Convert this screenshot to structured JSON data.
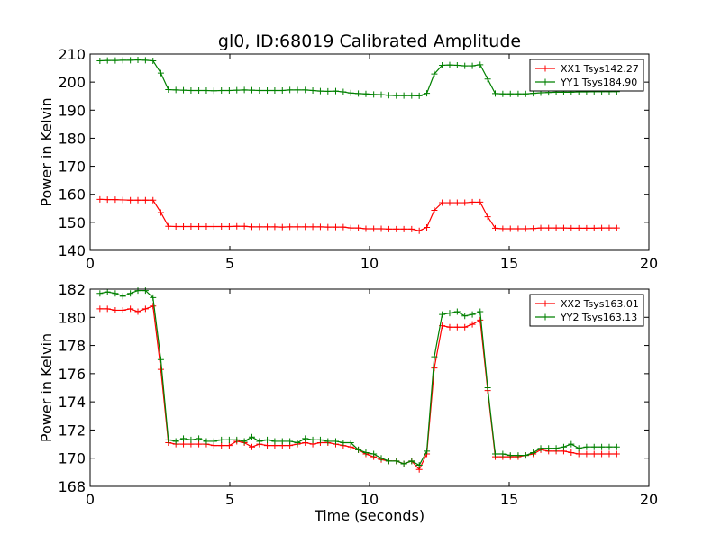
{
  "chart_data": [
    {
      "type": "line",
      "title": "gl0, ID:68019 Calibrated Amplitude",
      "xlabel": "",
      "ylabel": "Power in Kelvin",
      "xlim": [
        0,
        20
      ],
      "ylim": [
        140,
        210
      ],
      "xticks": [
        0,
        5,
        10,
        15,
        20
      ],
      "yticks": [
        140,
        150,
        160,
        170,
        180,
        190,
        200,
        210
      ],
      "legend_position": "top-right",
      "grid": false,
      "x": [
        0.35,
        0.62,
        0.9,
        1.17,
        1.44,
        1.71,
        1.98,
        2.25,
        2.53,
        2.8,
        3.07,
        3.34,
        3.61,
        3.89,
        4.16,
        4.43,
        4.7,
        4.98,
        5.25,
        5.52,
        5.79,
        6.06,
        6.34,
        6.61,
        6.88,
        7.15,
        7.42,
        7.7,
        7.97,
        8.24,
        8.51,
        8.79,
        9.06,
        9.33,
        9.6,
        9.87,
        10.15,
        10.42,
        10.69,
        10.96,
        11.23,
        11.51,
        11.78,
        12.05,
        12.32,
        12.6,
        12.87,
        13.14,
        13.41,
        13.68,
        13.96,
        14.23,
        14.5,
        14.77,
        15.04,
        15.32,
        15.59,
        15.86,
        16.13,
        16.41,
        16.68,
        16.95,
        17.22,
        17.49,
        17.77,
        18.04,
        18.31,
        18.58,
        18.85
      ],
      "series": [
        {
          "name": "XX1 Tsys142.27",
          "color": "#ff0000",
          "values": [
            158.2,
            158.1,
            158.1,
            158.0,
            157.9,
            157.9,
            157.9,
            157.9,
            153.5,
            148.6,
            148.5,
            148.5,
            148.5,
            148.5,
            148.5,
            148.5,
            148.5,
            148.5,
            148.6,
            148.6,
            148.4,
            148.4,
            148.4,
            148.4,
            148.3,
            148.4,
            148.4,
            148.4,
            148.4,
            148.4,
            148.3,
            148.3,
            148.3,
            148.0,
            148.0,
            147.7,
            147.7,
            147.7,
            147.6,
            147.6,
            147.6,
            147.6,
            147.0,
            148.2,
            154.3,
            157.0,
            157.0,
            157.0,
            157.0,
            157.2,
            157.2,
            152.0,
            147.9,
            147.7,
            147.7,
            147.7,
            147.7,
            147.8,
            148.0,
            148.0,
            148.0,
            148.0,
            147.9,
            147.9,
            147.9,
            147.9,
            148.0,
            148.0,
            148.0
          ]
        },
        {
          "name": "YY1 Tsys184.90",
          "color": "#008000",
          "values": [
            207.6,
            207.7,
            207.7,
            207.8,
            207.8,
            207.9,
            207.8,
            207.6,
            203.2,
            197.3,
            197.2,
            197.1,
            197.0,
            197.0,
            197.0,
            196.9,
            197.0,
            197.0,
            197.1,
            197.2,
            197.1,
            197.0,
            197.0,
            197.0,
            197.0,
            197.2,
            197.2,
            197.2,
            197.0,
            196.8,
            196.7,
            196.8,
            196.5,
            196.1,
            195.9,
            195.8,
            195.6,
            195.5,
            195.3,
            195.2,
            195.2,
            195.2,
            195.1,
            196.0,
            202.9,
            206.0,
            206.1,
            206.0,
            205.8,
            205.8,
            206.2,
            201.1,
            195.9,
            195.8,
            195.8,
            195.8,
            195.8,
            196.0,
            196.2,
            196.3,
            196.4,
            196.4,
            196.4,
            196.5,
            196.5,
            196.6,
            196.6,
            196.6,
            196.6
          ]
        }
      ]
    },
    {
      "type": "line",
      "title": "",
      "xlabel": "Time (seconds)",
      "ylabel": "Power in Kelvin",
      "xlim": [
        0,
        20
      ],
      "ylim": [
        168,
        182
      ],
      "xticks": [
        0,
        5,
        10,
        15,
        20
      ],
      "yticks": [
        168,
        170,
        172,
        174,
        176,
        178,
        180,
        182
      ],
      "legend_position": "top-right",
      "grid": false,
      "x": [
        0.35,
        0.62,
        0.9,
        1.17,
        1.44,
        1.71,
        1.98,
        2.25,
        2.53,
        2.8,
        3.07,
        3.34,
        3.61,
        3.89,
        4.16,
        4.43,
        4.7,
        4.98,
        5.25,
        5.52,
        5.79,
        6.06,
        6.34,
        6.61,
        6.88,
        7.15,
        7.42,
        7.7,
        7.97,
        8.24,
        8.51,
        8.79,
        9.06,
        9.33,
        9.6,
        9.87,
        10.15,
        10.42,
        10.69,
        10.96,
        11.23,
        11.51,
        11.78,
        12.05,
        12.32,
        12.6,
        12.87,
        13.14,
        13.41,
        13.68,
        13.96,
        14.23,
        14.5,
        14.77,
        15.04,
        15.32,
        15.59,
        15.86,
        16.13,
        16.41,
        16.68,
        16.95,
        17.22,
        17.49,
        17.77,
        18.04,
        18.31,
        18.58,
        18.85
      ],
      "series": [
        {
          "name": "XX2 Tsys163.01",
          "color": "#ff0000",
          "values": [
            180.6,
            180.6,
            180.5,
            180.5,
            180.6,
            180.4,
            180.6,
            180.8,
            176.3,
            171.1,
            171.0,
            171.0,
            171.0,
            171.0,
            171.0,
            170.9,
            170.9,
            170.9,
            171.2,
            171.1,
            170.8,
            171.0,
            170.9,
            170.9,
            170.9,
            170.9,
            171.0,
            171.1,
            171.0,
            171.1,
            171.1,
            171.0,
            170.9,
            170.8,
            170.6,
            170.3,
            170.1,
            169.9,
            169.8,
            169.8,
            169.6,
            169.8,
            169.2,
            170.3,
            176.4,
            179.4,
            179.3,
            179.3,
            179.3,
            179.5,
            179.8,
            174.8,
            170.1,
            170.1,
            170.1,
            170.1,
            170.2,
            170.3,
            170.6,
            170.5,
            170.5,
            170.5,
            170.4,
            170.3,
            170.3,
            170.3,
            170.3,
            170.3,
            170.3
          ]
        },
        {
          "name": "YY2 Tsys163.13",
          "color": "#008000",
          "values": [
            181.7,
            181.8,
            181.7,
            181.5,
            181.7,
            181.9,
            181.9,
            181.4,
            177.0,
            171.3,
            171.2,
            171.4,
            171.3,
            171.4,
            171.2,
            171.2,
            171.3,
            171.3,
            171.3,
            171.2,
            171.5,
            171.2,
            171.3,
            171.2,
            171.2,
            171.2,
            171.1,
            171.4,
            171.3,
            171.3,
            171.2,
            171.2,
            171.1,
            171.1,
            170.6,
            170.4,
            170.3,
            170.0,
            169.8,
            169.8,
            169.6,
            169.8,
            169.5,
            170.5,
            177.2,
            180.2,
            180.3,
            180.4,
            180.1,
            180.2,
            180.4,
            175.0,
            170.3,
            170.3,
            170.2,
            170.2,
            170.2,
            170.4,
            170.7,
            170.7,
            170.7,
            170.8,
            171.0,
            170.7,
            170.8,
            170.8,
            170.8,
            170.8,
            170.8
          ]
        }
      ]
    }
  ]
}
